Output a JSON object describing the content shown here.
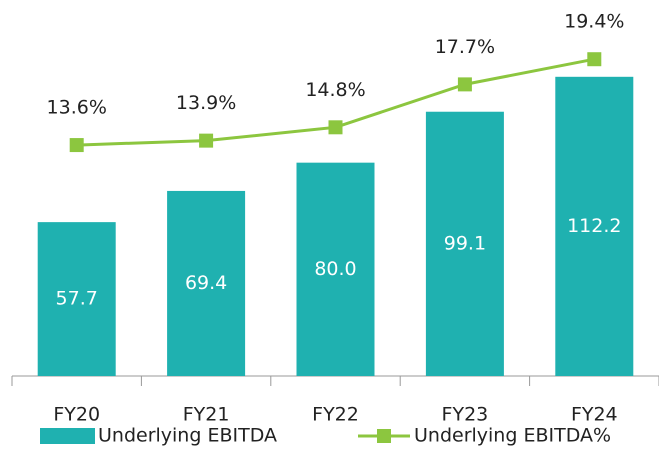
{
  "chart_data": {
    "type": "bar-line",
    "categories": [
      "FY20",
      "FY21",
      "FY22",
      "FY23",
      "FY24"
    ],
    "series": [
      {
        "name": "Underlying EBITDA",
        "type": "bar",
        "color": "#1fb1b0",
        "values": [
          57.7,
          69.4,
          80.0,
          99.1,
          112.2
        ],
        "value_labels": [
          "57.7",
          "69.4",
          "80.0",
          "99.1",
          "112.2"
        ]
      },
      {
        "name": "Underlying EBITDA%",
        "type": "line",
        "axis": "y2",
        "color": "#8cc63f",
        "values": [
          13.6,
          13.9,
          14.8,
          17.7,
          19.4
        ],
        "value_labels": [
          "13.6%",
          "13.9%",
          "14.8%",
          "17.7%",
          "19.4%"
        ]
      }
    ],
    "ylim": [
      0,
      141
    ],
    "y2lim": [
      -2,
      23.4
    ],
    "legend": "bottom"
  }
}
